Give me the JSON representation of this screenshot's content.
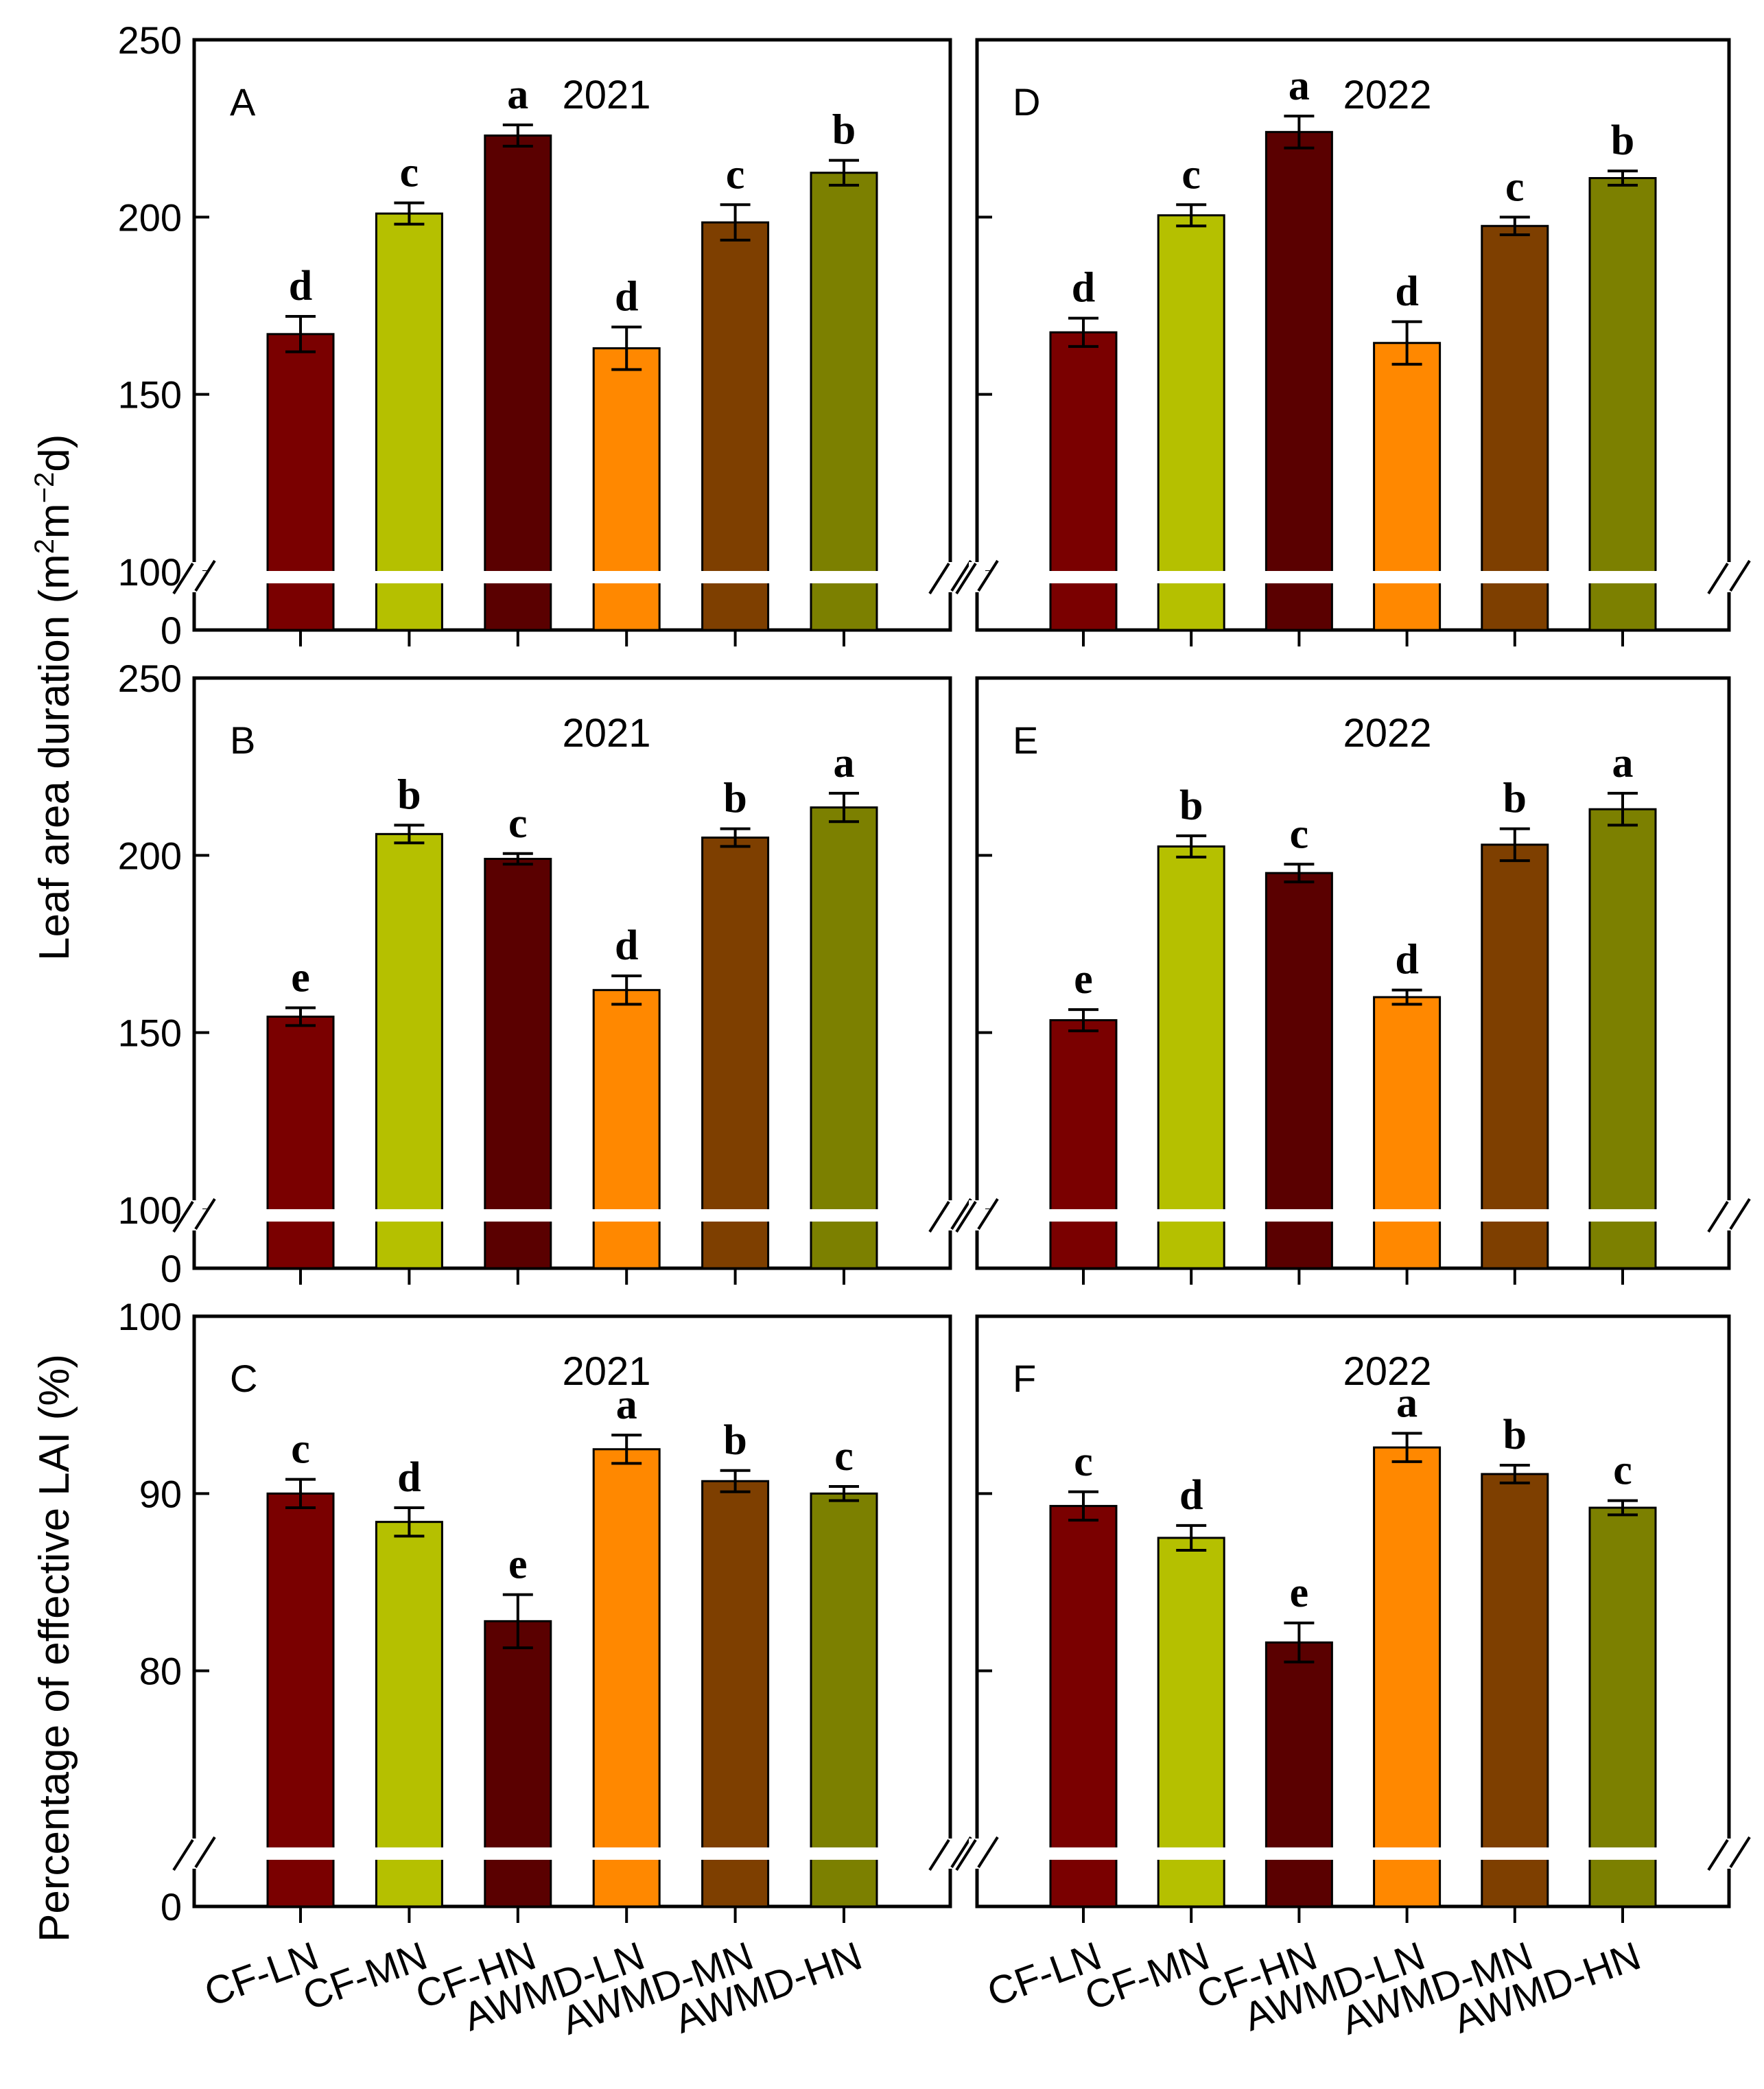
{
  "figure": {
    "ylabel_top": "Leaf area duration (m²m⁻²d)",
    "ylabel_top_parts": {
      "main": "Leaf area duration (m",
      "sup1": "2",
      "mid": "m",
      "sup2": "−2",
      "end": "d)"
    },
    "ylabel_bottom": "Percentage of effective LAI (%)"
  },
  "chart_data": [
    {
      "id": "A",
      "type": "bar",
      "letter": "A",
      "title": "2021",
      "categories": [
        "CF-LN",
        "CF-MN",
        "CF-HN",
        "AWMD-LN",
        "AWMD-MN",
        "AWMD-HN"
      ],
      "values": [
        167,
        201,
        223,
        163,
        198.5,
        212.5
      ],
      "errors": [
        5,
        3,
        3,
        6,
        5,
        3.5
      ],
      "letters": [
        "d",
        "c",
        "a",
        "d",
        "c",
        "b"
      ],
      "colors": [
        "#7a0000",
        "#b5c000",
        "#5a0000",
        "#ff8800",
        "#7e3f00",
        "#7c8000"
      ],
      "ylim": [
        100,
        250
      ],
      "yticks": [
        "0",
        "100",
        "150",
        "200",
        "250"
      ],
      "axis_break": true,
      "show_tick_labels": true,
      "show_x_labels": false
    },
    {
      "id": "D",
      "type": "bar",
      "letter": "D",
      "title": "2022",
      "categories": [
        "CF-LN",
        "CF-MN",
        "CF-HN",
        "AWMD-LN",
        "AWMD-MN",
        "AWMD-HN"
      ],
      "values": [
        167.5,
        200.5,
        224,
        164.5,
        197.5,
        211
      ],
      "errors": [
        4,
        3,
        4.5,
        6,
        2.5,
        2
      ],
      "letters": [
        "d",
        "c",
        "a",
        "d",
        "c",
        "b"
      ],
      "colors": [
        "#7a0000",
        "#b5c000",
        "#5a0000",
        "#ff8800",
        "#7e3f00",
        "#7c8000"
      ],
      "ylim": [
        100,
        250
      ],
      "yticks": [
        "0",
        "100",
        "150",
        "200",
        "250"
      ],
      "axis_break": true,
      "show_tick_labels": false,
      "show_x_labels": false
    },
    {
      "id": "B",
      "type": "bar",
      "letter": "B",
      "title": "2021",
      "categories": [
        "CF-LN",
        "CF-MN",
        "CF-HN",
        "AWMD-LN",
        "AWMD-MN",
        "AWMD-HN"
      ],
      "values": [
        154.5,
        206,
        199,
        162,
        205,
        213.5
      ],
      "errors": [
        2.5,
        2.5,
        1.5,
        4,
        2.5,
        4
      ],
      "letters": [
        "e",
        "b",
        "c",
        "d",
        "b",
        "a"
      ],
      "colors": [
        "#7a0000",
        "#b5c000",
        "#5a0000",
        "#ff8800",
        "#7e3f00",
        "#7c8000"
      ],
      "ylim": [
        100,
        250
      ],
      "yticks": [
        "0",
        "100",
        "150",
        "200",
        "250"
      ],
      "axis_break": true,
      "show_tick_labels": true,
      "show_x_labels": false
    },
    {
      "id": "E",
      "type": "bar",
      "letter": "E",
      "title": "2022",
      "categories": [
        "CF-LN",
        "CF-MN",
        "CF-HN",
        "AWMD-LN",
        "AWMD-MN",
        "AWMD-HN"
      ],
      "values": [
        153.5,
        202.5,
        195,
        160,
        203,
        213
      ],
      "errors": [
        3,
        3,
        2.5,
        2,
        4.5,
        4.5
      ],
      "letters": [
        "e",
        "b",
        "c",
        "d",
        "b",
        "a"
      ],
      "colors": [
        "#7a0000",
        "#b5c000",
        "#5a0000",
        "#ff8800",
        "#7e3f00",
        "#7c8000"
      ],
      "ylim": [
        100,
        250
      ],
      "yticks": [
        "0",
        "100",
        "150",
        "200",
        "250"
      ],
      "axis_break": true,
      "show_tick_labels": false,
      "show_x_labels": false
    },
    {
      "id": "C",
      "type": "bar",
      "letter": "C",
      "title": "2021",
      "categories": [
        "CF-LN",
        "CF-MN",
        "CF-HN",
        "AWMD-LN",
        "AWMD-MN",
        "AWMD-HN"
      ],
      "values": [
        90,
        88.4,
        82.8,
        92.5,
        90.7,
        90
      ],
      "errors": [
        0.8,
        0.8,
        1.5,
        0.8,
        0.6,
        0.4
      ],
      "letters": [
        "c",
        "d",
        "e",
        "a",
        "b",
        "c"
      ],
      "colors": [
        "#7a0000",
        "#b5c000",
        "#5a0000",
        "#ff8800",
        "#7e3f00",
        "#7c8000"
      ],
      "ylim": [
        70,
        100
      ],
      "yticks": [
        "0",
        "80",
        "90",
        "100"
      ],
      "axis_break": true,
      "show_tick_labels": true,
      "show_x_labels": true
    },
    {
      "id": "F",
      "type": "bar",
      "letter": "F",
      "title": "2022",
      "categories": [
        "CF-LN",
        "CF-MN",
        "CF-HN",
        "AWMD-LN",
        "AWMD-MN",
        "AWMD-HN"
      ],
      "values": [
        89.3,
        87.5,
        81.6,
        92.6,
        91.1,
        89.2
      ],
      "errors": [
        0.8,
        0.7,
        1.1,
        0.8,
        0.5,
        0.4
      ],
      "letters": [
        "c",
        "d",
        "e",
        "a",
        "b",
        "c"
      ],
      "colors": [
        "#7a0000",
        "#b5c000",
        "#5a0000",
        "#ff8800",
        "#7e3f00",
        "#7c8000"
      ],
      "ylim": [
        70,
        100
      ],
      "yticks": [
        "0",
        "80",
        "90",
        "100"
      ],
      "axis_break": true,
      "show_tick_labels": false,
      "show_x_labels": true
    }
  ]
}
